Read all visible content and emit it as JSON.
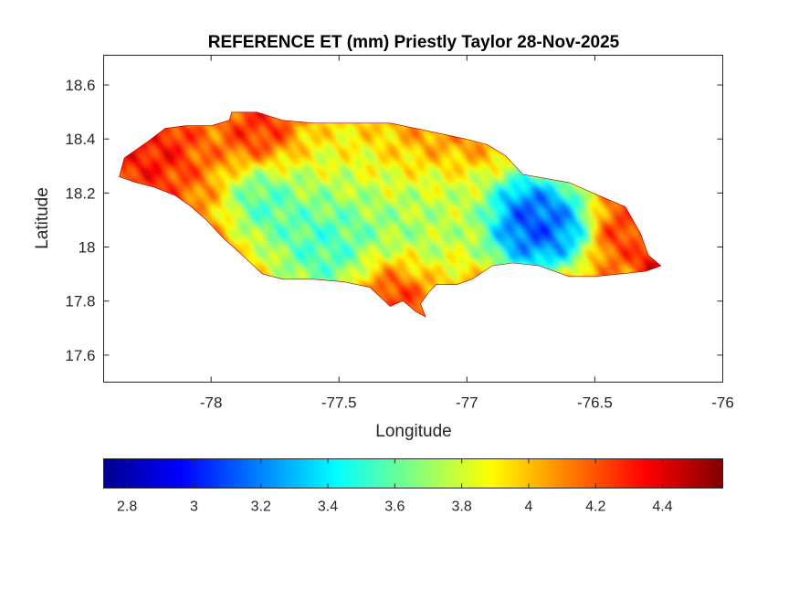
{
  "figure": {
    "title": "REFERENCE ET (mm) Priestly Taylor 28-Nov-2025",
    "xlabel": "Longitude",
    "ylabel": "Latitude"
  },
  "axes": {
    "xlim": [
      -78.42,
      -76.0
    ],
    "ylim": [
      17.5,
      18.71
    ],
    "xticks": [
      -78,
      -77.5,
      -77,
      -76.5,
      -76
    ],
    "xtick_labels": [
      "-78",
      "-77.5",
      "-77",
      "-76.5",
      "-76"
    ],
    "yticks": [
      17.6,
      17.8,
      18.0,
      18.2,
      18.4,
      18.6
    ],
    "ytick_labels": [
      "17.6",
      "17.8",
      "18",
      "18.2",
      "18.4",
      "18.6"
    ]
  },
  "colorbar": {
    "colormap": "jet",
    "clim": [
      2.73,
      4.58
    ],
    "ticks": [
      2.8,
      3.0,
      3.2,
      3.4,
      3.6,
      3.8,
      4.0,
      4.2,
      4.4
    ],
    "tick_labels": [
      "2.8",
      "3",
      "3.2",
      "3.4",
      "3.6",
      "3.8",
      "4",
      "4.2",
      "4.4"
    ],
    "location": "southoutside"
  },
  "chart_data": {
    "type": "heatmap",
    "title": "REFERENCE ET (mm) Priestly Taylor 28-Nov-2025",
    "xlabel": "Longitude",
    "ylabel": "Latitude",
    "xlim": [
      -78.42,
      -76.0
    ],
    "ylim": [
      17.5,
      18.71
    ],
    "grid": false,
    "units": "mm",
    "value_range": [
      2.73,
      4.58
    ],
    "region_outline": [
      [
        -78.36,
        18.26
      ],
      [
        -78.34,
        18.33
      ],
      [
        -78.25,
        18.39
      ],
      [
        -78.18,
        18.44
      ],
      [
        -78.1,
        18.45
      ],
      [
        -78.0,
        18.45
      ],
      [
        -77.93,
        18.47
      ],
      [
        -77.92,
        18.5
      ],
      [
        -77.82,
        18.5
      ],
      [
        -77.72,
        18.47
      ],
      [
        -77.6,
        18.46
      ],
      [
        -77.45,
        18.46
      ],
      [
        -77.3,
        18.46
      ],
      [
        -77.15,
        18.43
      ],
      [
        -77.0,
        18.4
      ],
      [
        -76.92,
        18.38
      ],
      [
        -76.85,
        18.34
      ],
      [
        -76.78,
        18.27
      ],
      [
        -76.6,
        18.24
      ],
      [
        -76.48,
        18.19
      ],
      [
        -76.38,
        18.15
      ],
      [
        -76.32,
        18.05
      ],
      [
        -76.29,
        17.97
      ],
      [
        -76.24,
        17.93
      ],
      [
        -76.3,
        17.91
      ],
      [
        -76.4,
        17.9
      ],
      [
        -76.5,
        17.89
      ],
      [
        -76.6,
        17.89
      ],
      [
        -76.72,
        17.93
      ],
      [
        -76.82,
        17.94
      ],
      [
        -76.9,
        17.93
      ],
      [
        -76.98,
        17.88
      ],
      [
        -77.04,
        17.86
      ],
      [
        -77.12,
        17.86
      ],
      [
        -77.15,
        17.83
      ],
      [
        -77.18,
        17.79
      ],
      [
        -77.16,
        17.74
      ],
      [
        -77.2,
        17.76
      ],
      [
        -77.25,
        17.8
      ],
      [
        -77.3,
        17.78
      ],
      [
        -77.38,
        17.85
      ],
      [
        -77.48,
        17.87
      ],
      [
        -77.6,
        17.88
      ],
      [
        -77.72,
        17.88
      ],
      [
        -77.8,
        17.9
      ],
      [
        -77.88,
        17.97
      ],
      [
        -77.95,
        18.03
      ],
      [
        -78.02,
        18.1
      ],
      [
        -78.08,
        18.15
      ],
      [
        -78.14,
        18.19
      ],
      [
        -78.22,
        18.22
      ],
      [
        -78.3,
        18.24
      ]
    ],
    "value_centers": [
      {
        "lon": -77.55,
        "lat": 18.05,
        "et": 3.3,
        "spread": 0.14
      },
      {
        "lon": -77.8,
        "lat": 18.17,
        "et": 3.4,
        "spread": 0.08
      },
      {
        "lon": -77.25,
        "lat": 18.05,
        "et": 3.6,
        "spread": 0.12
      },
      {
        "lon": -76.78,
        "lat": 18.09,
        "et": 2.8,
        "spread": 0.1
      },
      {
        "lon": -76.67,
        "lat": 18.07,
        "et": 3.0,
        "spread": 0.08
      },
      {
        "lon": -77.05,
        "lat": 18.11,
        "et": 3.7,
        "spread": 0.1
      },
      {
        "lon": -77.5,
        "lat": 18.28,
        "et": 3.85,
        "spread": 0.14
      },
      {
        "lon": -76.4,
        "lat": 18.05,
        "et": 4.3,
        "spread": 0.06
      },
      {
        "lon": -76.26,
        "lat": 17.93,
        "et": 4.55,
        "spread": 0.04
      },
      {
        "lon": -77.3,
        "lat": 17.85,
        "et": 4.45,
        "spread": 0.08
      },
      {
        "lon": -78.25,
        "lat": 18.35,
        "et": 4.4,
        "spread": 0.1
      },
      {
        "lon": -77.8,
        "lat": 18.43,
        "et": 4.35,
        "spread": 0.08
      }
    ],
    "background_value": 4.1
  }
}
